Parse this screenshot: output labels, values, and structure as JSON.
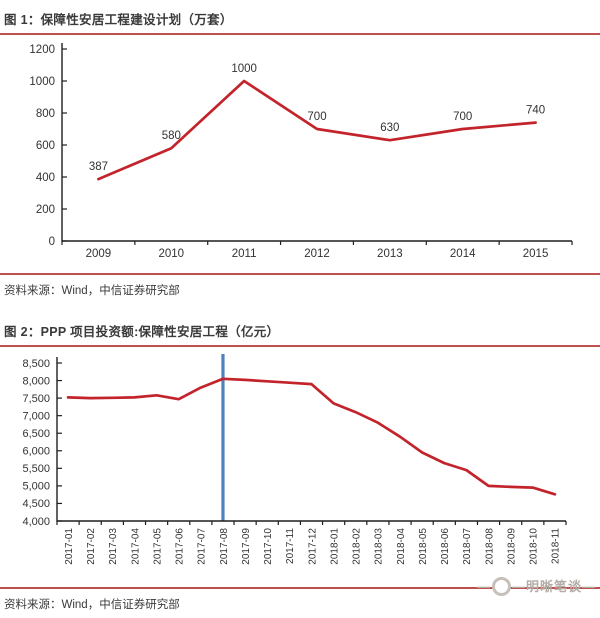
{
  "figure1": {
    "title": "图 1：保障性安居工程建设计划（万套）",
    "source": "资料来源：Wind，中信证券研究部"
  },
  "figure2": {
    "title": "图 2：PPP 项目投资额:保障性安居工程（亿元）",
    "source": "资料来源：Wind，中信证券研究部"
  },
  "watermark": {
    "dash_left": "—",
    "label": "明晰笔谈",
    "dash_right": "—"
  },
  "colors": {
    "series_red": "#c3242c",
    "divider_red": "#c0504d",
    "highlight_blue": "#4f81bd",
    "axis_black": "#1f1f1f",
    "label_text": "#333333",
    "watermark_gray": "#b3aca5"
  },
  "chart_data": [
    {
      "type": "line",
      "title": "保障性安居工程建设计划（万套）",
      "categories": [
        "2009",
        "2010",
        "2011",
        "2012",
        "2013",
        "2014",
        "2015"
      ],
      "values": [
        387,
        580,
        1000,
        700,
        630,
        700,
        740
      ],
      "point_labels": [
        "387",
        "580",
        "1000",
        "700",
        "630",
        "700",
        "740"
      ],
      "xlabel": "",
      "ylabel": "",
      "ylim": [
        0,
        1200
      ],
      "y_tick_step": 200,
      "y_tick_labels": [
        "1200",
        "1000",
        "800",
        "600",
        "400",
        "200",
        "0"
      ],
      "grid": false,
      "legend": "none",
      "line_color": "#c3242c"
    },
    {
      "type": "line",
      "title": "PPP 项目投资额:保障性安居工程（亿元）",
      "categories": [
        "2017-01",
        "2017-02",
        "2017-03",
        "2017-04",
        "2017-05",
        "2017-06",
        "2017-07",
        "2017-08",
        "2017-09",
        "2017-10",
        "2017-11",
        "2017-12",
        "2018-01",
        "2018-02",
        "2018-03",
        "2018-04",
        "2018-05",
        "2018-06",
        "2018-07",
        "2018-08",
        "2018-09",
        "2018-10",
        "2018-11"
      ],
      "values": [
        7520,
        7500,
        7510,
        7520,
        7580,
        7470,
        7800,
        8050,
        8020,
        7980,
        7940,
        7900,
        7350,
        7100,
        6800,
        6400,
        5950,
        5650,
        5450,
        5000,
        4970,
        4950,
        4760
      ],
      "xlabel": "",
      "ylabel": "",
      "ylim": [
        4000,
        8500
      ],
      "y_tick_step": 500,
      "y_tick_labels": [
        "8,500",
        "8,000",
        "7,500",
        "7,000",
        "6,500",
        "6,000",
        "5,500",
        "5,000",
        "4,500",
        "4,000"
      ],
      "grid": false,
      "legend": "none",
      "line_color": "#c3242c",
      "vline": {
        "category": "2017-08",
        "color": "#4f81bd"
      }
    }
  ]
}
